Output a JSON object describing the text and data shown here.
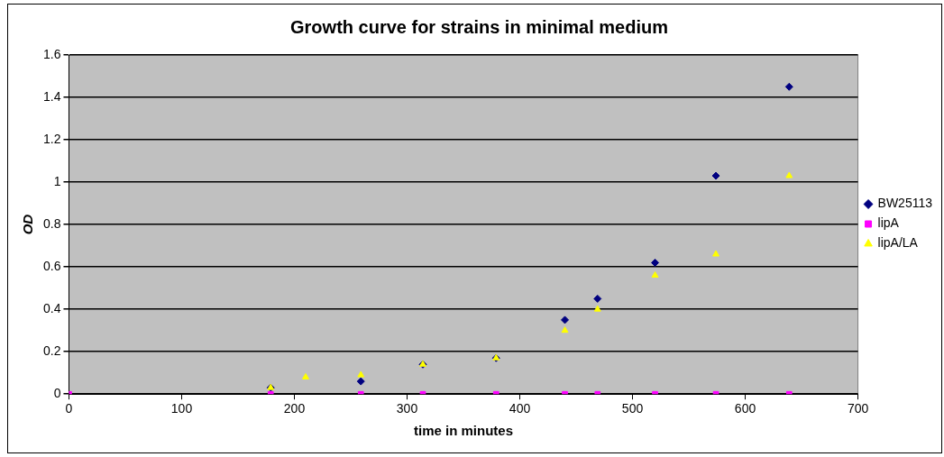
{
  "chart_data": {
    "type": "scatter",
    "title": "Growth curve for strains in minimal medium",
    "xlabel": "time in minutes",
    "ylabel": "OD",
    "xlim": [
      0,
      700
    ],
    "xticks": [
      0,
      100,
      200,
      300,
      400,
      500,
      600,
      700
    ],
    "ylim": [
      0,
      1.6
    ],
    "yticks": [
      0,
      0.2,
      0.4,
      0.6,
      0.8,
      1,
      1.2,
      1.4,
      1.6
    ],
    "grid": "y",
    "legend": "right",
    "series": [
      {
        "name": "BW25113",
        "color": "#000080",
        "marker": "diamond",
        "x": [
          179,
          259,
          314,
          379,
          440,
          469,
          520,
          574,
          639
        ],
        "values": [
          0.03,
          0.06,
          0.14,
          0.17,
          0.35,
          0.45,
          0.62,
          1.03,
          1.45
        ]
      },
      {
        "name": "lipA",
        "color": "#ff00ff",
        "marker": "square",
        "x": [
          0,
          179,
          259,
          314,
          379,
          440,
          469,
          520,
          574,
          639
        ],
        "values": [
          0,
          0,
          0,
          0,
          0,
          0,
          0,
          0,
          0,
          0
        ]
      },
      {
        "name": "lipA/LA",
        "color": "#ffff00",
        "marker": "triangle",
        "x": [
          179,
          210,
          259,
          314,
          379,
          440,
          469,
          520,
          574,
          639
        ],
        "values": [
          0.03,
          0.08,
          0.09,
          0.14,
          0.17,
          0.3,
          0.4,
          0.56,
          0.66,
          1.03
        ]
      }
    ]
  }
}
